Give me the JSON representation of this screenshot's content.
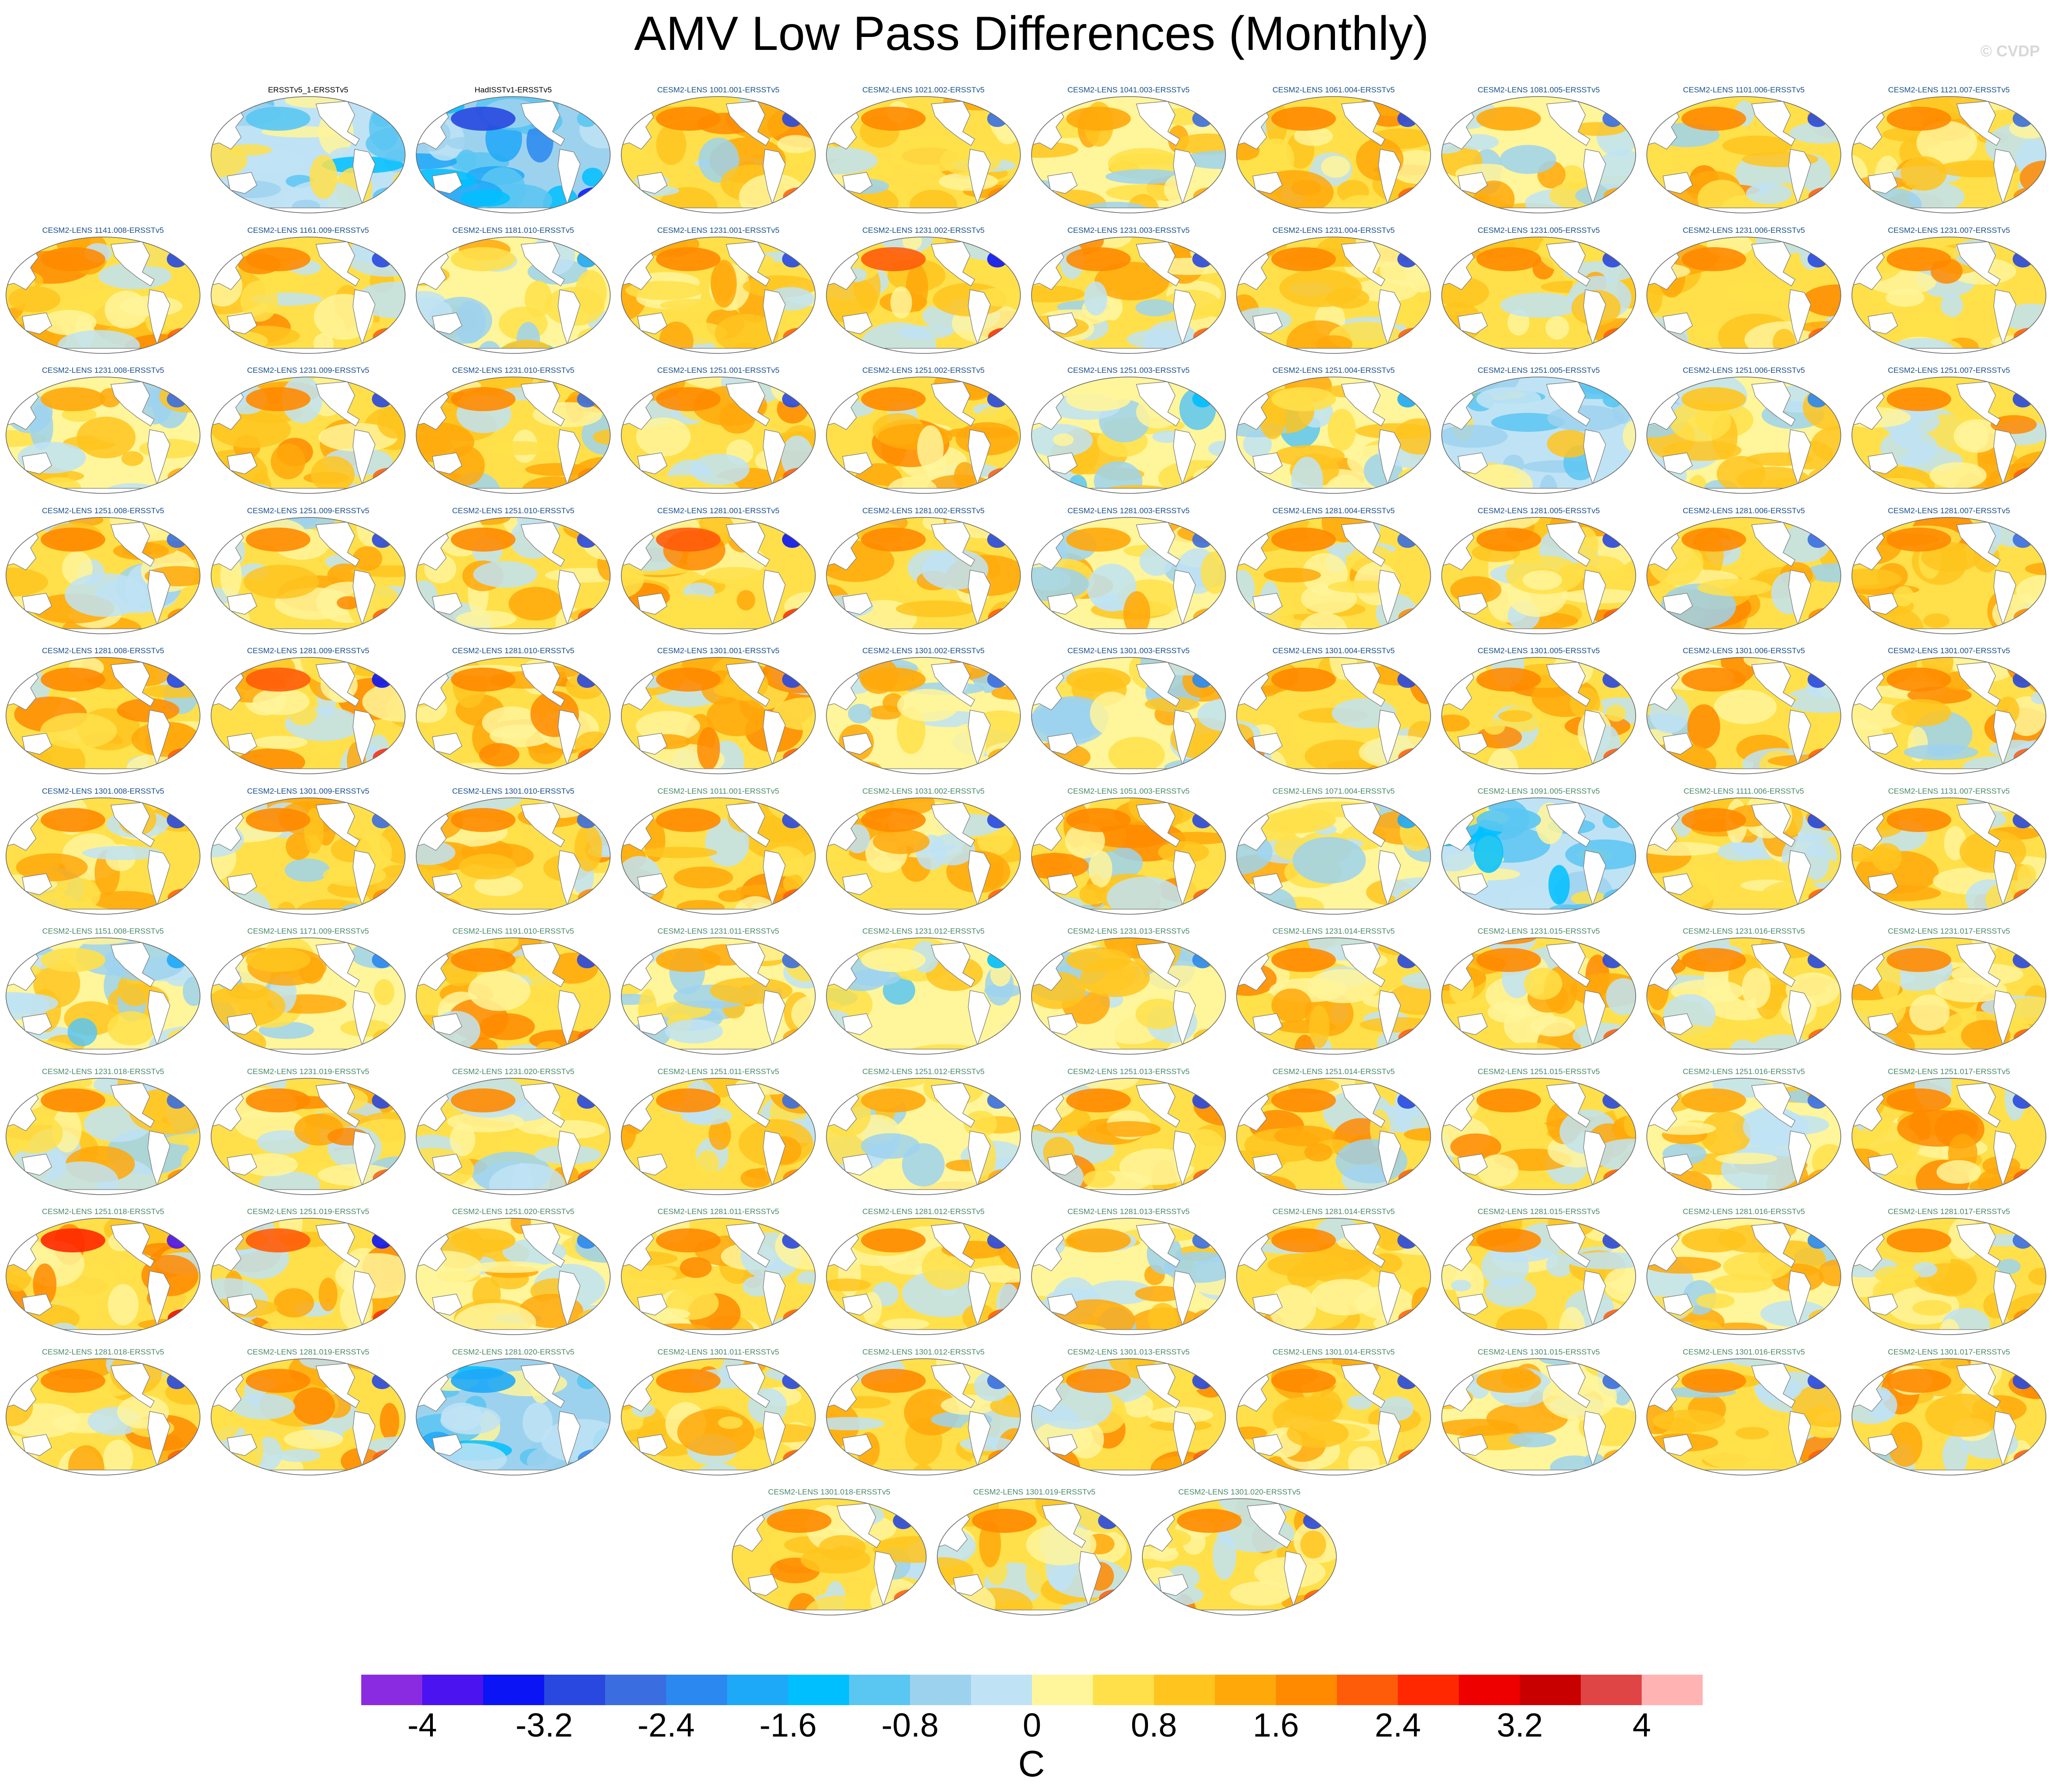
{
  "title": "AMV Low Pass Differences (Monthly)",
  "watermark": "© CVDP",
  "colorbar": {
    "units": "C",
    "tick_labels": [
      "-4",
      "-3.2",
      "-2.4",
      "-1.6",
      "-0.8",
      "0",
      "0.8",
      "1.6",
      "2.4",
      "3.2",
      "4"
    ],
    "tick_values": [
      -4,
      -3.2,
      -2.4,
      -1.6,
      -0.8,
      0,
      0.8,
      1.6,
      2.4,
      3.2,
      4
    ],
    "boundaries": [
      -4.4,
      -4,
      -3.6,
      -3.2,
      -2.8,
      -2.4,
      -2,
      -1.6,
      -1.2,
      -0.8,
      -0.4,
      0,
      0.4,
      0.8,
      1.2,
      1.6,
      2,
      2.4,
      2.8,
      3.2,
      3.6,
      4,
      4.4
    ],
    "colors": [
      "#8a2be2",
      "#4b13f0",
      "#0a14f5",
      "#2848e0",
      "#3a6ee0",
      "#2a88f0",
      "#1ea8f8",
      "#00bfff",
      "#5ac6f2",
      "#9dd2ee",
      "#bfe3f4",
      "#fff59a",
      "#ffe04a",
      "#ffc41e",
      "#ffa80a",
      "#ff8a00",
      "#ff5c0a",
      "#ff2800",
      "#ee0000",
      "#c80000",
      "#e04545",
      "#ffb3b3"
    ]
  },
  "chart_data": {
    "type": "heatmap",
    "title": "AMV Low Pass Differences (Monthly)",
    "variable_units": "C",
    "colorbar_range": [
      -4.4,
      4.4
    ],
    "colorbar_step": 0.4,
    "panels": [
      {
        "label": "ERSSTv5_1-ERSSTv5",
        "color": "#000000",
        "tone": -0.3
      },
      {
        "label": "HadISSTv1-ERSSTv5",
        "color": "#000000",
        "tone": -0.9
      },
      {
        "label": "CESM2-LENS 1001.001-ERSSTv5",
        "color": "#1a4f8a",
        "tone": 0.6
      },
      {
        "label": "CESM2-LENS 1021.002-ERSSTv5",
        "color": "#1a4f8a",
        "tone": 0.5
      },
      {
        "label": "CESM2-LENS 1041.003-ERSSTv5",
        "color": "#1a4f8a",
        "tone": 0.4
      },
      {
        "label": "CESM2-LENS 1061.004-ERSSTv5",
        "color": "#1a4f8a",
        "tone": 0.6
      },
      {
        "label": "CESM2-LENS 1081.005-ERSSTv5",
        "color": "#1a4f8a",
        "tone": 0.4
      },
      {
        "label": "CESM2-LENS 1101.006-ERSSTv5",
        "color": "#1a4f8a",
        "tone": 0.6
      },
      {
        "label": "CESM2-LENS 1121.007-ERSSTv5",
        "color": "#1a4f8a",
        "tone": 0.5
      },
      {
        "label": "CESM2-LENS 1141.008-ERSSTv5",
        "color": "#1a4f8a",
        "tone": 0.6
      },
      {
        "label": "CESM2-LENS 1161.009-ERSSTv5",
        "color": "#1a4f8a",
        "tone": 0.6
      },
      {
        "label": "CESM2-LENS 1181.010-ERSSTv5",
        "color": "#1a4f8a",
        "tone": 0.2
      },
      {
        "label": "CESM2-LENS 1231.001-ERSSTv5",
        "color": "#1a4f8a",
        "tone": 0.6
      },
      {
        "label": "CESM2-LENS 1231.002-ERSSTv5",
        "color": "#1a4f8a",
        "tone": 0.7
      },
      {
        "label": "CESM2-LENS 1231.003-ERSSTv5",
        "color": "#1a4f8a",
        "tone": 0.6
      },
      {
        "label": "CESM2-LENS 1231.004-ERSSTv5",
        "color": "#1a4f8a",
        "tone": 0.6
      },
      {
        "label": "CESM2-LENS 1231.005-ERSSTv5",
        "color": "#1a4f8a",
        "tone": 0.6
      },
      {
        "label": "CESM2-LENS 1231.006-ERSSTv5",
        "color": "#1a4f8a",
        "tone": 0.6
      },
      {
        "label": "CESM2-LENS 1231.007-ERSSTv5",
        "color": "#1a4f8a",
        "tone": 0.6
      },
      {
        "label": "CESM2-LENS 1231.008-ERSSTv5",
        "color": "#1a4f8a",
        "tone": 0.4
      },
      {
        "label": "CESM2-LENS 1231.009-ERSSTv5",
        "color": "#1a4f8a",
        "tone": 0.6
      },
      {
        "label": "CESM2-LENS 1231.010-ERSSTv5",
        "color": "#1a4f8a",
        "tone": 0.5
      },
      {
        "label": "CESM2-LENS 1251.001-ERSSTv5",
        "color": "#1a4f8a",
        "tone": 0.6
      },
      {
        "label": "CESM2-LENS 1251.002-ERSSTv5",
        "color": "#1a4f8a",
        "tone": 0.6
      },
      {
        "label": "CESM2-LENS 1251.003-ERSSTv5",
        "color": "#1a4f8a",
        "tone": 0.1
      },
      {
        "label": "CESM2-LENS 1251.004-ERSSTv5",
        "color": "#1a4f8a",
        "tone": 0.2
      },
      {
        "label": "CESM2-LENS 1251.005-ERSSTv5",
        "color": "#1a4f8a",
        "tone": -0.1
      },
      {
        "label": "CESM2-LENS 1251.006-ERSSTv5",
        "color": "#1a4f8a",
        "tone": 0.3
      },
      {
        "label": "CESM2-LENS 1251.007-ERSSTv5",
        "color": "#1a4f8a",
        "tone": 0.6
      },
      {
        "label": "CESM2-LENS 1251.008-ERSSTv5",
        "color": "#1a4f8a",
        "tone": 0.5
      },
      {
        "label": "CESM2-LENS 1251.009-ERSSTv5",
        "color": "#1a4f8a",
        "tone": 0.6
      },
      {
        "label": "CESM2-LENS 1251.010-ERSSTv5",
        "color": "#1a4f8a",
        "tone": 0.6
      },
      {
        "label": "CESM2-LENS 1281.001-ERSSTv5",
        "color": "#1a4f8a",
        "tone": 0.7
      },
      {
        "label": "CESM2-LENS 1281.002-ERSSTv5",
        "color": "#1a4f8a",
        "tone": 0.6
      },
      {
        "label": "CESM2-LENS 1281.003-ERSSTv5",
        "color": "#1a4f8a",
        "tone": 0.4
      },
      {
        "label": "CESM2-LENS 1281.004-ERSSTv5",
        "color": "#1a4f8a",
        "tone": 0.5
      },
      {
        "label": "CESM2-LENS 1281.005-ERSSTv5",
        "color": "#1a4f8a",
        "tone": 0.6
      },
      {
        "label": "CESM2-LENS 1281.006-ERSSTv5",
        "color": "#1a4f8a",
        "tone": 0.5
      },
      {
        "label": "CESM2-LENS 1281.007-ERSSTv5",
        "color": "#1a4f8a",
        "tone": 0.5
      },
      {
        "label": "CESM2-LENS 1281.008-ERSSTv5",
        "color": "#1a4f8a",
        "tone": 0.6
      },
      {
        "label": "CESM2-LENS 1281.009-ERSSTv5",
        "color": "#1a4f8a",
        "tone": 0.7
      },
      {
        "label": "CESM2-LENS 1281.010-ERSSTv5",
        "color": "#1a4f8a",
        "tone": 0.6
      },
      {
        "label": "CESM2-LENS 1301.001-ERSSTv5",
        "color": "#1a4f8a",
        "tone": 0.6
      },
      {
        "label": "CESM2-LENS 1301.002-ERSSTv5",
        "color": "#1a4f8a",
        "tone": 0.4
      },
      {
        "label": "CESM2-LENS 1301.003-ERSSTv5",
        "color": "#1a4f8a",
        "tone": 0.3
      },
      {
        "label": "CESM2-LENS 1301.004-ERSSTv5",
        "color": "#1a4f8a",
        "tone": 0.6
      },
      {
        "label": "CESM2-LENS 1301.005-ERSSTv5",
        "color": "#1a4f8a",
        "tone": 0.6
      },
      {
        "label": "CESM2-LENS 1301.006-ERSSTv5",
        "color": "#1a4f8a",
        "tone": 0.6
      },
      {
        "label": "CESM2-LENS 1301.007-ERSSTv5",
        "color": "#1a4f8a",
        "tone": 0.6
      },
      {
        "label": "CESM2-LENS 1301.008-ERSSTv5",
        "color": "#1a4f8a",
        "tone": 0.6
      },
      {
        "label": "CESM2-LENS 1301.009-ERSSTv5",
        "color": "#1a4f8a",
        "tone": 0.5
      },
      {
        "label": "CESM2-LENS 1301.010-ERSSTv5",
        "color": "#1a4f8a",
        "tone": 0.5
      },
      {
        "label": "CESM2-LENS 1011.001-ERSSTv5",
        "color": "#4a8a6a",
        "tone": 0.6
      },
      {
        "label": "CESM2-LENS 1031.002-ERSSTv5",
        "color": "#4a8a6a",
        "tone": 0.6
      },
      {
        "label": "CESM2-LENS 1051.003-ERSSTv5",
        "color": "#4a8a6a",
        "tone": 0.6
      },
      {
        "label": "CESM2-LENS 1071.004-ERSSTv5",
        "color": "#4a8a6a",
        "tone": 0.2
      },
      {
        "label": "CESM2-LENS 1091.005-ERSSTv5",
        "color": "#4a8a6a",
        "tone": -0.3
      },
      {
        "label": "CESM2-LENS 1111.006-ERSSTv5",
        "color": "#4a8a6a",
        "tone": 0.6
      },
      {
        "label": "CESM2-LENS 1131.007-ERSSTv5",
        "color": "#4a8a6a",
        "tone": 0.6
      },
      {
        "label": "CESM2-LENS 1151.008-ERSSTv5",
        "color": "#4a8a6a",
        "tone": 0.2
      },
      {
        "label": "CESM2-LENS 1171.009-ERSSTv5",
        "color": "#4a8a6a",
        "tone": 0.3
      },
      {
        "label": "CESM2-LENS 1191.010-ERSSTv5",
        "color": "#4a8a6a",
        "tone": 0.6
      },
      {
        "label": "CESM2-LENS 1231.011-ERSSTv5",
        "color": "#4a8a6a",
        "tone": 0.4
      },
      {
        "label": "CESM2-LENS 1231.012-ERSSTv5",
        "color": "#4a8a6a",
        "tone": 0.1
      },
      {
        "label": "CESM2-LENS 1231.013-ERSSTv5",
        "color": "#4a8a6a",
        "tone": 0.3
      },
      {
        "label": "CESM2-LENS 1231.014-ERSSTv5",
        "color": "#4a8a6a",
        "tone": 0.6
      },
      {
        "label": "CESM2-LENS 1231.015-ERSSTv5",
        "color": "#4a8a6a",
        "tone": 0.6
      },
      {
        "label": "CESM2-LENS 1231.016-ERSSTv5",
        "color": "#4a8a6a",
        "tone": 0.6
      },
      {
        "label": "CESM2-LENS 1231.017-ERSSTv5",
        "color": "#4a8a6a",
        "tone": 0.6
      },
      {
        "label": "CESM2-LENS 1231.018-ERSSTv5",
        "color": "#4a8a6a",
        "tone": 0.5
      },
      {
        "label": "CESM2-LENS 1231.019-ERSSTv5",
        "color": "#4a8a6a",
        "tone": 0.6
      },
      {
        "label": "CESM2-LENS 1231.020-ERSSTv5",
        "color": "#4a8a6a",
        "tone": 0.6
      },
      {
        "label": "CESM2-LENS 1251.011-ERSSTv5",
        "color": "#4a8a6a",
        "tone": 0.5
      },
      {
        "label": "CESM2-LENS 1251.012-ERSSTv5",
        "color": "#4a8a6a",
        "tone": 0.4
      },
      {
        "label": "CESM2-LENS 1251.013-ERSSTv5",
        "color": "#4a8a6a",
        "tone": 0.6
      },
      {
        "label": "CESM2-LENS 1251.014-ERSSTv5",
        "color": "#4a8a6a",
        "tone": 0.6
      },
      {
        "label": "CESM2-LENS 1251.015-ERSSTv5",
        "color": "#4a8a6a",
        "tone": 0.6
      },
      {
        "label": "CESM2-LENS 1251.016-ERSSTv5",
        "color": "#4a8a6a",
        "tone": 0.4
      },
      {
        "label": "CESM2-LENS 1251.017-ERSSTv5",
        "color": "#4a8a6a",
        "tone": 0.6
      },
      {
        "label": "CESM2-LENS 1251.018-ERSSTv5",
        "color": "#4a8a6a",
        "tone": 0.8
      },
      {
        "label": "CESM2-LENS 1251.019-ERSSTv5",
        "color": "#4a8a6a",
        "tone": 0.7
      },
      {
        "label": "CESM2-LENS 1251.020-ERSSTv5",
        "color": "#4a8a6a",
        "tone": 0.3
      },
      {
        "label": "CESM2-LENS 1281.011-ERSSTv5",
        "color": "#4a8a6a",
        "tone": 0.6
      },
      {
        "label": "CESM2-LENS 1281.012-ERSSTv5",
        "color": "#4a8a6a",
        "tone": 0.6
      },
      {
        "label": "CESM2-LENS 1281.013-ERSSTv5",
        "color": "#4a8a6a",
        "tone": 0.4
      },
      {
        "label": "CESM2-LENS 1281.014-ERSSTv5",
        "color": "#4a8a6a",
        "tone": 0.6
      },
      {
        "label": "CESM2-LENS 1281.015-ERSSTv5",
        "color": "#4a8a6a",
        "tone": 0.6
      },
      {
        "label": "CESM2-LENS 1281.016-ERSSTv5",
        "color": "#4a8a6a",
        "tone": 0.3
      },
      {
        "label": "CESM2-LENS 1281.017-ERSSTv5",
        "color": "#4a8a6a",
        "tone": 0.5
      },
      {
        "label": "CESM2-LENS 1281.018-ERSSTv5",
        "color": "#4a8a6a",
        "tone": 0.6
      },
      {
        "label": "CESM2-LENS 1281.019-ERSSTv5",
        "color": "#4a8a6a",
        "tone": 0.6
      },
      {
        "label": "CESM2-LENS 1281.020-ERSSTv5",
        "color": "#4a8a6a",
        "tone": -0.6
      },
      {
        "label": "CESM2-LENS 1301.011-ERSSTv5",
        "color": "#4a8a6a",
        "tone": 0.6
      },
      {
        "label": "CESM2-LENS 1301.012-ERSSTv5",
        "color": "#4a8a6a",
        "tone": 0.5
      },
      {
        "label": "CESM2-LENS 1301.013-ERSSTv5",
        "color": "#4a8a6a",
        "tone": 0.6
      },
      {
        "label": "CESM2-LENS 1301.014-ERSSTv5",
        "color": "#4a8a6a",
        "tone": 0.6
      },
      {
        "label": "CESM2-LENS 1301.015-ERSSTv5",
        "color": "#4a8a6a",
        "tone": 0.4
      },
      {
        "label": "CESM2-LENS 1301.016-ERSSTv5",
        "color": "#4a8a6a",
        "tone": 0.6
      },
      {
        "label": "CESM2-LENS 1301.017-ERSSTv5",
        "color": "#4a8a6a",
        "tone": 0.6
      },
      {
        "label": "CESM2-LENS 1301.018-ERSSTv5",
        "color": "#4a8a6a",
        "tone": 0.6
      },
      {
        "label": "CESM2-LENS 1301.019-ERSSTv5",
        "color": "#4a8a6a",
        "tone": 0.6
      },
      {
        "label": "CESM2-LENS 1301.020-ERSSTv5",
        "color": "#4a8a6a",
        "tone": 0.6
      }
    ]
  }
}
